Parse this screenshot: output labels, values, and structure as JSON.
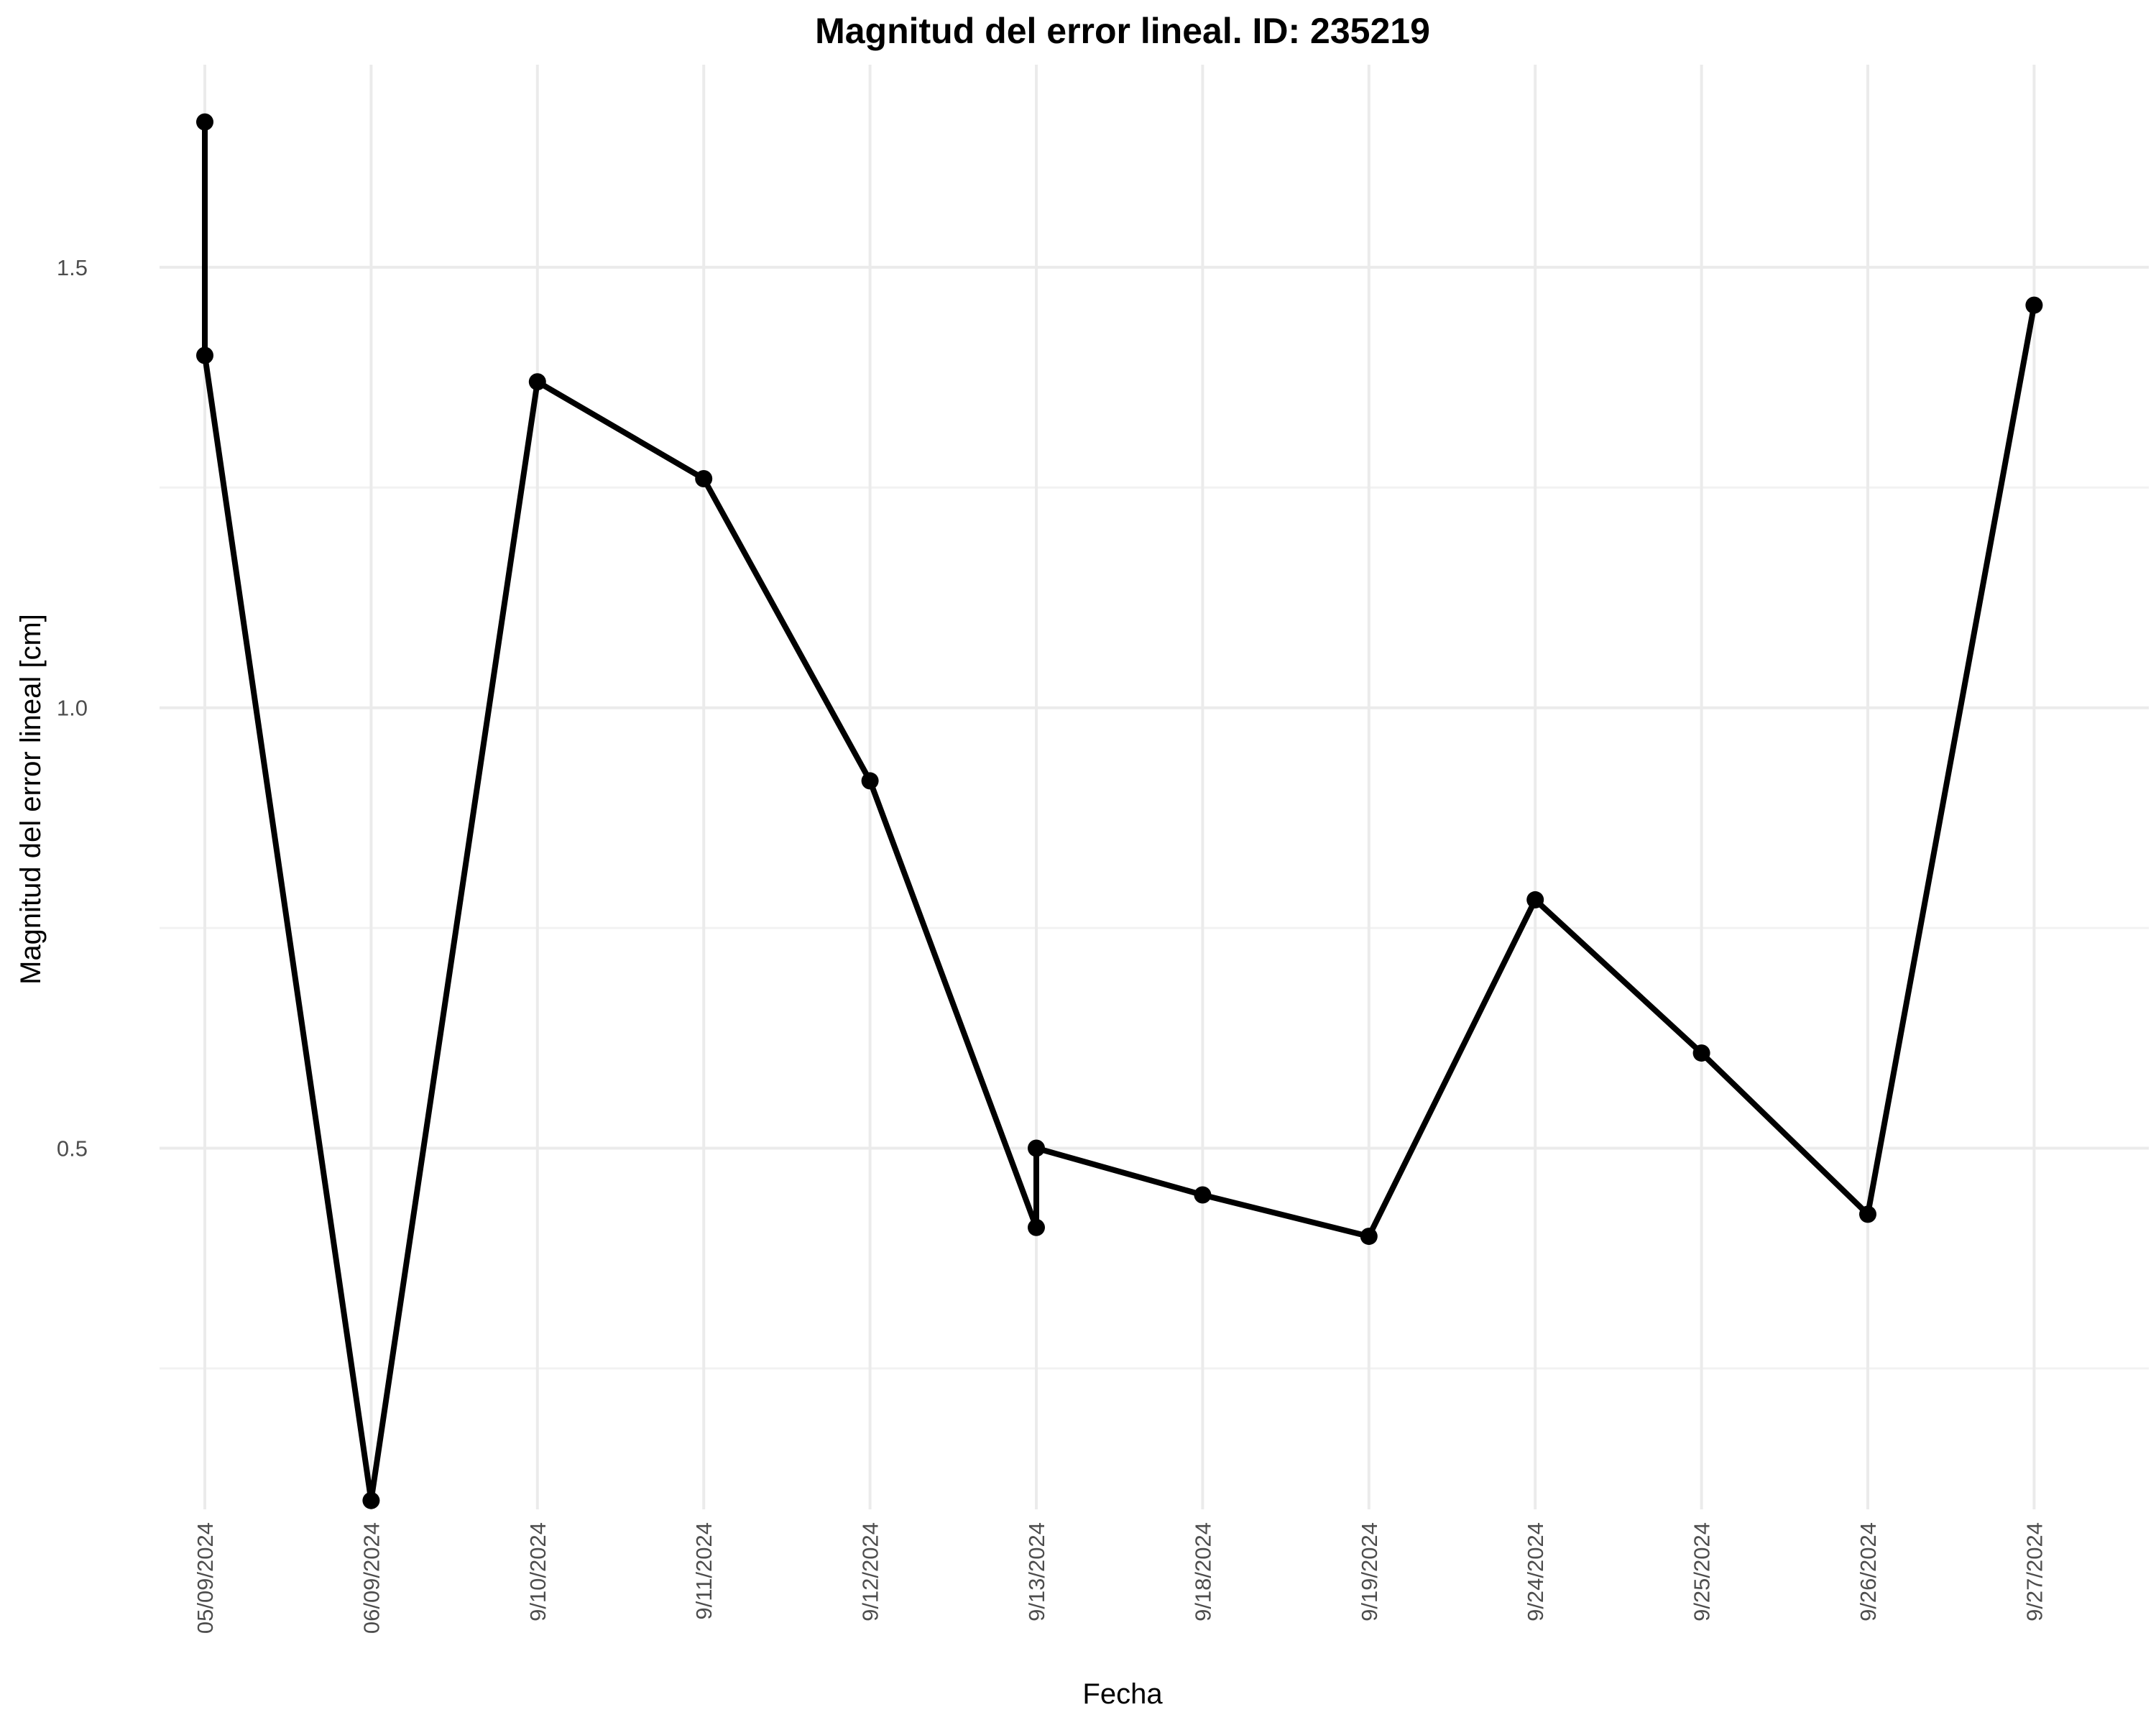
{
  "chart_data": {
    "type": "line",
    "title": "Magnitud del error lineal. ID: 235219",
    "xlabel": "Fecha",
    "ylabel": "Magnitud del error lineal [cm]",
    "categories": [
      "05/09/2024",
      "06/09/2024",
      "9/10/2024",
      "9/11/2024",
      "9/12/2024",
      "9/13/2024",
      "9/18/2024",
      "9/19/2024",
      "9/24/2024",
      "9/25/2024",
      "9/26/2024",
      "9/27/2024"
    ],
    "yticks": [
      0.5,
      1.0,
      1.5
    ],
    "ytick_labels": [
      "0.5",
      "1.0",
      "1.5"
    ],
    "ylim": [
      0.09,
      1.73
    ],
    "grid": true,
    "series": [
      {
        "color": "#000000",
        "points": [
          {
            "x": "05/09/2024",
            "y": 1.665
          },
          {
            "x": "05/09/2024",
            "y": 1.4
          },
          {
            "x": "06/09/2024",
            "y": 0.1
          },
          {
            "x": "9/10/2024",
            "y": 1.37
          },
          {
            "x": "9/11/2024",
            "y": 1.26
          },
          {
            "x": "9/12/2024",
            "y": 0.917
          },
          {
            "x": "9/13/2024",
            "y": 0.41
          },
          {
            "x": "9/13/2024",
            "y": 0.5
          },
          {
            "x": "9/18/2024",
            "y": 0.447
          },
          {
            "x": "9/19/2024",
            "y": 0.4
          },
          {
            "x": "9/24/2024",
            "y": 0.782
          },
          {
            "x": "9/25/2024",
            "y": 0.608
          },
          {
            "x": "9/26/2024",
            "y": 0.425
          },
          {
            "x": "9/27/2024",
            "y": 1.457
          }
        ]
      }
    ]
  }
}
